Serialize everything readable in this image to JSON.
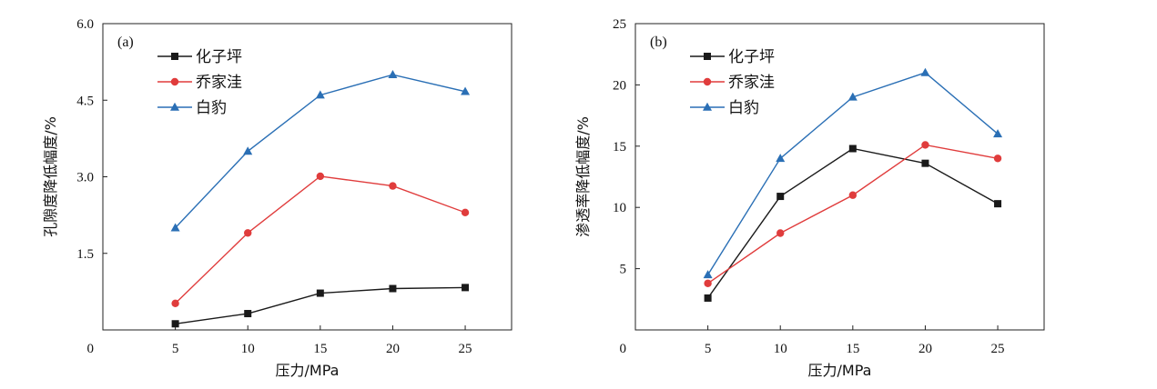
{
  "chart_data": [
    {
      "type": "line",
      "panel_label": "(a)",
      "xlabel": "压力/MPa",
      "ylabel": "孔隙度降低幅度/%",
      "x": [
        5,
        10,
        15,
        20,
        25
      ],
      "xticks": [
        "5",
        "10",
        "15",
        "20",
        "25"
      ],
      "yticks": [
        "6.0",
        "4.5",
        "3.0",
        "1.5",
        "0"
      ],
      "ylim": [
        0,
        6.0
      ],
      "xlim": [
        0,
        28.2
      ],
      "legend_position": "top-left",
      "series": [
        {
          "name": "化子坪",
          "marker": "square",
          "color": "#1a1a1a",
          "values": [
            0.12,
            0.32,
            0.72,
            0.81,
            0.83
          ]
        },
        {
          "name": "乔家洼",
          "marker": "circle",
          "color": "#e03c3c",
          "values": [
            0.52,
            1.9,
            3.01,
            2.82,
            2.3
          ]
        },
        {
          "name": "白豹",
          "marker": "triangle",
          "color": "#2a6fb5",
          "values": [
            2.0,
            3.5,
            4.6,
            5.0,
            4.67
          ]
        }
      ]
    },
    {
      "type": "line",
      "panel_label": "(b)",
      "xlabel": "压力/MPa",
      "ylabel": "渗透率降低幅度/%",
      "x": [
        5,
        10,
        15,
        20,
        25
      ],
      "xticks": [
        "5",
        "10",
        "15",
        "20",
        "25"
      ],
      "yticks": [
        "25",
        "20",
        "15",
        "10",
        "5",
        "0"
      ],
      "ylim": [
        0,
        25
      ],
      "xlim": [
        0,
        28.2
      ],
      "legend_position": "top-left",
      "series": [
        {
          "name": "化子坪",
          "marker": "square",
          "color": "#1a1a1a",
          "values": [
            2.6,
            10.9,
            14.8,
            13.6,
            10.3
          ]
        },
        {
          "name": "乔家洼",
          "marker": "circle",
          "color": "#e03c3c",
          "values": [
            3.8,
            7.9,
            11.0,
            15.1,
            14.0
          ]
        },
        {
          "name": "白豹",
          "marker": "triangle",
          "color": "#2a6fb5",
          "values": [
            4.5,
            14.0,
            19.0,
            21.0,
            16.0
          ]
        }
      ]
    }
  ]
}
